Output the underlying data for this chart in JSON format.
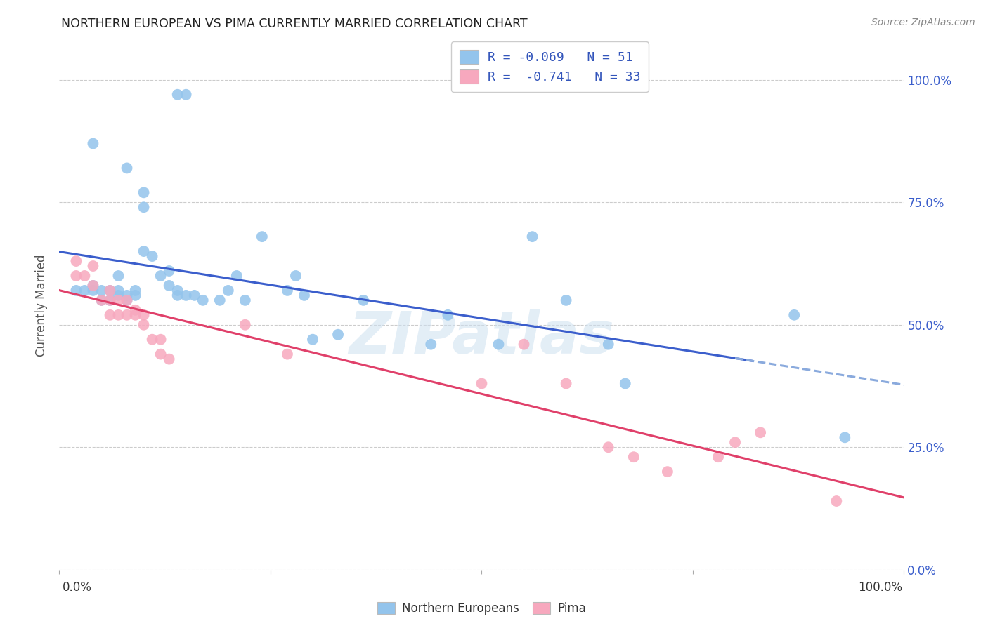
{
  "title": "NORTHERN EUROPEAN VS PIMA CURRENTLY MARRIED CORRELATION CHART",
  "source": "Source: ZipAtlas.com",
  "ylabel": "Currently Married",
  "ytick_vals": [
    0.0,
    0.25,
    0.5,
    0.75,
    1.0
  ],
  "ytick_labels": [
    "0.0%",
    "25.0%",
    "50.0%",
    "75.0%",
    "100.0%"
  ],
  "color_blue": "#93C4EC",
  "color_pink": "#F7A8BE",
  "line_blue": "#3B5ECC",
  "line_blue_dash": "#8AAADD",
  "line_pink": "#E0406A",
  "legend_text_color": "#3355BB",
  "legend_r_blue": "R = -0.069",
  "legend_n_blue": "N = 51",
  "legend_r_pink": "R =  -0.741",
  "legend_n_pink": "N = 33",
  "legend_label_blue": "Northern Europeans",
  "legend_label_pink": "Pima",
  "watermark": "ZIPatlas",
  "xlim": [
    0.0,
    1.0
  ],
  "ylim": [
    0.0,
    1.08
  ],
  "blue_x": [
    0.14,
    0.15,
    0.04,
    0.08,
    0.1,
    0.1,
    0.02,
    0.03,
    0.04,
    0.04,
    0.05,
    0.05,
    0.06,
    0.06,
    0.07,
    0.07,
    0.07,
    0.08,
    0.08,
    0.09,
    0.09,
    0.1,
    0.11,
    0.12,
    0.13,
    0.13,
    0.14,
    0.14,
    0.15,
    0.16,
    0.17,
    0.19,
    0.2,
    0.21,
    0.22,
    0.24,
    0.27,
    0.28,
    0.29,
    0.3,
    0.33,
    0.36,
    0.44,
    0.46,
    0.52,
    0.56,
    0.6,
    0.65,
    0.67,
    0.87,
    0.93
  ],
  "blue_y": [
    0.97,
    0.97,
    0.87,
    0.82,
    0.77,
    0.74,
    0.57,
    0.57,
    0.57,
    0.58,
    0.55,
    0.57,
    0.55,
    0.57,
    0.56,
    0.57,
    0.6,
    0.55,
    0.56,
    0.56,
    0.57,
    0.65,
    0.64,
    0.6,
    0.58,
    0.61,
    0.56,
    0.57,
    0.56,
    0.56,
    0.55,
    0.55,
    0.57,
    0.6,
    0.55,
    0.68,
    0.57,
    0.6,
    0.56,
    0.47,
    0.48,
    0.55,
    0.46,
    0.52,
    0.46,
    0.68,
    0.55,
    0.46,
    0.38,
    0.52,
    0.27
  ],
  "pink_x": [
    0.02,
    0.02,
    0.03,
    0.04,
    0.04,
    0.05,
    0.06,
    0.06,
    0.06,
    0.07,
    0.07,
    0.08,
    0.08,
    0.09,
    0.09,
    0.1,
    0.1,
    0.11,
    0.12,
    0.12,
    0.13,
    0.22,
    0.27,
    0.5,
    0.55,
    0.6,
    0.65,
    0.68,
    0.72,
    0.78,
    0.8,
    0.83,
    0.92
  ],
  "pink_y": [
    0.63,
    0.6,
    0.6,
    0.62,
    0.58,
    0.55,
    0.55,
    0.57,
    0.52,
    0.52,
    0.55,
    0.52,
    0.55,
    0.53,
    0.52,
    0.5,
    0.52,
    0.47,
    0.44,
    0.47,
    0.43,
    0.5,
    0.44,
    0.38,
    0.46,
    0.38,
    0.25,
    0.23,
    0.2,
    0.23,
    0.26,
    0.28,
    0.14
  ]
}
